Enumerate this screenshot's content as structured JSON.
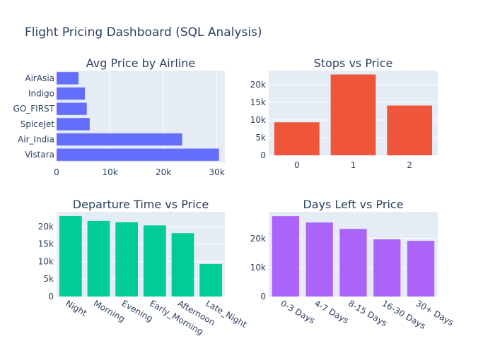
{
  "title": "Flight Pricing Dashboard (SQL Analysis)",
  "chart_data": [
    {
      "type": "bar",
      "orientation": "horizontal",
      "title": "Avg Price by Airline",
      "categories": [
        "AirAsia",
        "Indigo",
        "GO_FIRST",
        "SpiceJet",
        "Air_India",
        "Vistara"
      ],
      "values": [
        4100,
        5300,
        5650,
        6200,
        23500,
        30400
      ],
      "xlim": [
        0,
        31500
      ],
      "xticks": [
        0,
        10000,
        20000,
        30000
      ],
      "xtick_labels": [
        "0",
        "10k",
        "20k",
        "30k"
      ],
      "color": "#636efa",
      "grid": true
    },
    {
      "type": "bar",
      "title": "Stops vs Price",
      "categories": [
        "0",
        "1",
        "2"
      ],
      "values": [
        9350,
        22900,
        14100
      ],
      "ylim": [
        0,
        24000
      ],
      "yticks": [
        0,
        5000,
        10000,
        15000,
        20000
      ],
      "ytick_labels": [
        "0",
        "5k",
        "10k",
        "15k",
        "20k"
      ],
      "color": "#ef553b",
      "grid": true
    },
    {
      "type": "bar",
      "title": "Departure Time vs Price",
      "categories": [
        "Night",
        "Morning",
        "Evening",
        "Early_Morning",
        "Afternoon",
        "Late_Night"
      ],
      "values": [
        23000,
        21600,
        21200,
        20300,
        18100,
        9300
      ],
      "ylim": [
        0,
        24200
      ],
      "yticks": [
        0,
        5000,
        10000,
        15000,
        20000
      ],
      "ytick_labels": [
        "0",
        "5k",
        "10k",
        "15k",
        "20k"
      ],
      "color": "#00cc96",
      "grid": true
    },
    {
      "type": "bar",
      "title": "Days Left vs Price",
      "categories": [
        "0-3 Days",
        "4-7 Days",
        "8-15 Days",
        "16-30 Days",
        "30+ Days"
      ],
      "values": [
        27700,
        25500,
        23300,
        19700,
        19200
      ],
      "ylim": [
        0,
        29200
      ],
      "yticks": [
        0,
        10000,
        20000
      ],
      "ytick_labels": [
        "0",
        "10k",
        "20k"
      ],
      "color": "#ab63fa",
      "grid": true
    }
  ]
}
